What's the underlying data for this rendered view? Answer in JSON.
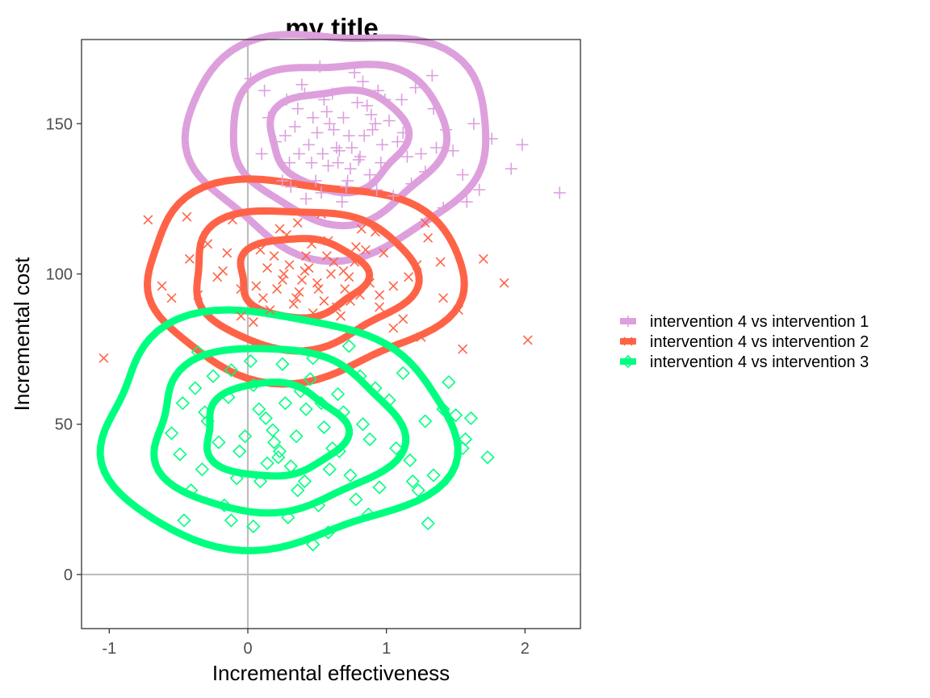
{
  "chart_data": {
    "type": "scatter",
    "title": "my title",
    "xlabel": "Incremental effectiveness",
    "ylabel": "Incremental cost",
    "xlim": [
      -1.2,
      2.4
    ],
    "ylim": [
      -18,
      178
    ],
    "x_ticks": [
      -1,
      0,
      1,
      2
    ],
    "x_tick_labels": [
      "-1",
      "0",
      "1",
      "2"
    ],
    "y_ticks": [
      0,
      50,
      100,
      150
    ],
    "y_tick_labels": [
      "0",
      "50",
      "100",
      "150"
    ],
    "reference_lines": {
      "x": 0,
      "y": 0
    },
    "grid": false,
    "legend_position": "right",
    "series": [
      {
        "name": "intervention 4 vs intervention 1",
        "color": "#dda0dd",
        "marker": "plus",
        "center": [
          0.65,
          145
        ],
        "spread": [
          0.35,
          12
        ],
        "contour_levels": [
          1.4,
          2.2,
          3.1
        ],
        "points": [
          [
            0.62,
            148
          ],
          [
            0.81,
            139
          ],
          [
            0.47,
            152
          ],
          [
            0.94,
            161
          ],
          [
            0.3,
            137
          ],
          [
            0.71,
            129
          ],
          [
            1.12,
            147
          ],
          [
            0.55,
            158
          ],
          [
            0.2,
            144
          ],
          [
            1.34,
            155
          ],
          [
            0.88,
            133
          ],
          [
            0.39,
            163
          ],
          [
            0.66,
            141
          ],
          [
            1.05,
            126
          ],
          [
            0.15,
            152
          ],
          [
            0.77,
            167
          ],
          [
            0.49,
            131
          ],
          [
            1.48,
            141
          ],
          [
            0.92,
            150
          ],
          [
            0.28,
            158
          ],
          [
            0.58,
            136
          ],
          [
            1.21,
            162
          ],
          [
            0.73,
            146
          ],
          [
            0.42,
            125
          ],
          [
            1.63,
            150
          ],
          [
            0.86,
            156
          ],
          [
            0.1,
            140
          ],
          [
            0.69,
            152
          ],
          [
            1.28,
            134
          ],
          [
            0.52,
            169
          ],
          [
            0.97,
            143
          ],
          [
            0.34,
            149
          ],
          [
            1.41,
            122
          ],
          [
            0.8,
            138
          ],
          [
            0.61,
            160
          ],
          [
            1.76,
            145
          ],
          [
            0.44,
            143
          ],
          [
            0.99,
            158
          ],
          [
            0.25,
            131
          ],
          [
            1.15,
            139
          ],
          [
            0.68,
            124
          ],
          [
            0.57,
            154
          ],
          [
            1.55,
            133
          ],
          [
            0.83,
            164
          ],
          [
            0.37,
            140
          ],
          [
            1.02,
            151
          ],
          [
            0.12,
            161
          ],
          [
            0.74,
            135
          ],
          [
            1.9,
            135
          ],
          [
            0.5,
            147
          ],
          [
            0.93,
            128
          ],
          [
            1.33,
            166
          ],
          [
            0.64,
            142
          ],
          [
            0.31,
            129
          ],
          [
            1.08,
            144
          ],
          [
            0.79,
            157
          ],
          [
            0.46,
            137
          ],
          [
            1.67,
            128
          ],
          [
            0.59,
            150
          ],
          [
            1.25,
            140
          ],
          [
            0.02,
            165
          ],
          [
            0.72,
            131
          ],
          [
            0.89,
            153
          ],
          [
            1.43,
            148
          ],
          [
            0.36,
            155
          ],
          [
            2.25,
            127
          ],
          [
            1.18,
            130
          ],
          [
            0.54,
            140
          ],
          [
            0.96,
            137
          ],
          [
            1.98,
            143
          ],
          [
            0.41,
            160
          ],
          [
            0.84,
            146
          ],
          [
            0.65,
            137
          ],
          [
            1.11,
            158
          ],
          [
            0.27,
            146
          ],
          [
            0.75,
            142
          ],
          [
            1.58,
            124
          ],
          [
            0.53,
            127
          ],
          [
            1.36,
            142
          ],
          [
            0.9,
            148
          ]
        ]
      },
      {
        "name": "intervention 4 vs intervention 2",
        "color": "#ff6347",
        "marker": "x",
        "center": [
          0.38,
          99
        ],
        "spread": [
          0.38,
          11
        ],
        "contour_levels": [
          1.2,
          2.1,
          3.0
        ],
        "points": [
          [
            0.39,
            98
          ],
          [
            0.62,
            104
          ],
          [
            0.11,
            92
          ],
          [
            0.85,
            108
          ],
          [
            -0.18,
            101
          ],
          [
            0.47,
            87
          ],
          [
            0.28,
            113
          ],
          [
            1.05,
            96
          ],
          [
            0.55,
            91
          ],
          [
            -0.42,
            105
          ],
          [
            0.73,
            99
          ],
          [
            0.19,
            106
          ],
          [
            0.95,
            89
          ],
          [
            0.36,
            117
          ],
          [
            -0.05,
            95
          ],
          [
            1.22,
            103
          ],
          [
            0.58,
            111
          ],
          [
            0.04,
            84
          ],
          [
            0.81,
            93
          ],
          [
            -0.29,
            110
          ],
          [
            0.44,
            102
          ],
          [
            1.41,
            92
          ],
          [
            0.25,
            98
          ],
          [
            0.67,
            86
          ],
          [
            -0.62,
            96
          ],
          [
            0.92,
            114
          ],
          [
            0.14,
            102
          ],
          [
            1.7,
            105
          ],
          [
            0.51,
            95
          ],
          [
            -0.11,
            118
          ],
          [
            0.77,
            104
          ],
          [
            0.33,
            90
          ],
          [
            1.3,
            112
          ],
          [
            0.6,
            100
          ],
          [
            -0.36,
            93
          ],
          [
            0.09,
            108
          ],
          [
            1.05,
            82
          ],
          [
            0.42,
            106
          ],
          [
            0.88,
            97
          ],
          [
            -0.55,
            92
          ],
          [
            0.23,
            115
          ],
          [
            1.52,
            88
          ],
          [
            0.69,
            101
          ],
          [
            0.37,
            94
          ],
          [
            -0.72,
            118
          ],
          [
            0.98,
            107
          ],
          [
            0.16,
            88
          ],
          [
            1.16,
            99
          ],
          [
            0.53,
            120
          ],
          [
            -0.22,
            99
          ],
          [
            0.74,
            91
          ],
          [
            0.3,
            103
          ],
          [
            1.85,
            97
          ],
          [
            0.46,
            110
          ],
          [
            -0.05,
            86
          ],
          [
            0.82,
            115
          ],
          [
            0.21,
            95
          ],
          [
            1.39,
            104
          ],
          [
            0.64,
            89
          ],
          [
            -1.04,
            72
          ],
          [
            0.41,
            101
          ],
          [
            0.95,
            93
          ],
          [
            1.25,
            79
          ],
          [
            0.06,
            96
          ],
          [
            2.02,
            78
          ],
          [
            0.57,
            106
          ],
          [
            -0.44,
            119
          ],
          [
            1.55,
            75
          ],
          [
            0.35,
            92
          ],
          [
            0.78,
            109
          ],
          [
            -0.15,
            107
          ],
          [
            1.28,
            117
          ],
          [
            0.5,
            97
          ],
          [
            1.12,
            85
          ],
          [
            0.26,
            100
          ],
          [
            0.7,
            95
          ]
        ]
      },
      {
        "name": "intervention 4 vs intervention 3",
        "color": "#00ff7f",
        "marker": "diamond",
        "center": [
          0.18,
          48
        ],
        "spread": [
          0.42,
          13
        ],
        "contour_levels": [
          1.2,
          2.1,
          3.0
        ],
        "points": [
          [
            0.18,
            48
          ],
          [
            0.42,
            55
          ],
          [
            -0.06,
            41
          ],
          [
            0.65,
            60
          ],
          [
            -0.29,
            51
          ],
          [
            0.31,
            36
          ],
          [
            0.04,
            63
          ],
          [
            0.88,
            45
          ],
          [
            0.22,
            39
          ],
          [
            -0.47,
            57
          ],
          [
            0.55,
            49
          ],
          [
            -0.12,
            68
          ],
          [
            0.74,
            33
          ],
          [
            0.13,
            52
          ],
          [
            -0.21,
            44
          ],
          [
            1.02,
            58
          ],
          [
            0.36,
            28
          ],
          [
            -0.38,
            62
          ],
          [
            0.61,
            42
          ],
          [
            0.09,
            31
          ],
          [
            -0.55,
            47
          ],
          [
            0.81,
            66
          ],
          [
            0.27,
            57
          ],
          [
            1.17,
            38
          ],
          [
            -0.02,
            46
          ],
          [
            0.47,
            72
          ],
          [
            -0.33,
            35
          ],
          [
            1.28,
            51
          ],
          [
            0.51,
            23
          ],
          [
            -0.14,
            59
          ],
          [
            0.69,
            54
          ],
          [
            0.19,
            44
          ],
          [
            1.45,
            64
          ],
          [
            -0.41,
            28
          ],
          [
            0.38,
            61
          ],
          [
            0.95,
            29
          ],
          [
            0.02,
            71
          ],
          [
            1.57,
            45
          ],
          [
            0.59,
            35
          ],
          [
            -0.25,
            66
          ],
          [
            0.83,
            50
          ],
          [
            0.29,
            19
          ],
          [
            1.07,
            42
          ],
          [
            -0.49,
            40
          ],
          [
            0.45,
            65
          ],
          [
            1.34,
            33
          ],
          [
            0.08,
            55
          ],
          [
            0.73,
            76
          ],
          [
            -0.17,
            23
          ],
          [
            1.61,
            52
          ],
          [
            0.35,
            46
          ],
          [
            0.92,
            62
          ],
          [
            -0.36,
            74
          ],
          [
            0.58,
            14
          ],
          [
            1.23,
            28
          ],
          [
            0.14,
            37
          ],
          [
            -0.46,
            18
          ],
          [
            0.87,
            20
          ],
          [
            1.55,
            42
          ],
          [
            0.25,
            70
          ],
          [
            -0.08,
            32
          ],
          [
            1.73,
            39
          ],
          [
            0.47,
            10
          ],
          [
            1.12,
            67
          ],
          [
            -0.12,
            18
          ],
          [
            0.66,
            41
          ],
          [
            0.04,
            16
          ],
          [
            1.3,
            17
          ],
          [
            0.41,
            31
          ],
          [
            1.41,
            55
          ],
          [
            -0.31,
            54
          ],
          [
            0.78,
            25
          ],
          [
            0.23,
            41
          ],
          [
            1.19,
            31
          ],
          [
            0.53,
            57
          ],
          [
            1.5,
            53
          ]
        ]
      }
    ]
  }
}
